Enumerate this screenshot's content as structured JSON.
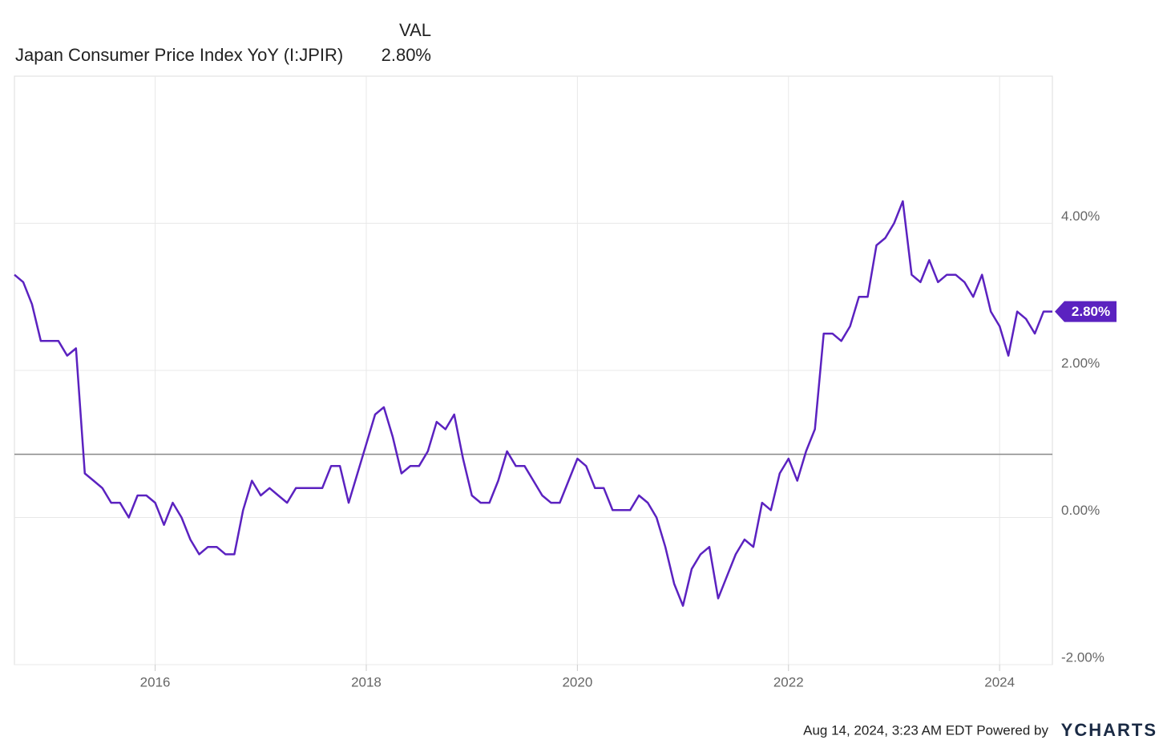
{
  "chart_data": {
    "type": "line",
    "legend": {
      "header": "VAL",
      "name": "Japan Consumer Price Index YoY (I:JPIR)",
      "value": "2.80%"
    },
    "x": [
      "2014-09",
      "2014-10",
      "2014-11",
      "2014-12",
      "2015-01",
      "2015-02",
      "2015-03",
      "2015-04",
      "2015-05",
      "2015-06",
      "2015-07",
      "2015-08",
      "2015-09",
      "2015-10",
      "2015-11",
      "2015-12",
      "2016-01",
      "2016-02",
      "2016-03",
      "2016-04",
      "2016-05",
      "2016-06",
      "2016-07",
      "2016-08",
      "2016-09",
      "2016-10",
      "2016-11",
      "2016-12",
      "2017-01",
      "2017-02",
      "2017-03",
      "2017-04",
      "2017-05",
      "2017-06",
      "2017-07",
      "2017-08",
      "2017-09",
      "2017-10",
      "2017-11",
      "2017-12",
      "2018-01",
      "2018-02",
      "2018-03",
      "2018-04",
      "2018-05",
      "2018-06",
      "2018-07",
      "2018-08",
      "2018-09",
      "2018-10",
      "2018-11",
      "2018-12",
      "2019-01",
      "2019-02",
      "2019-03",
      "2019-04",
      "2019-05",
      "2019-06",
      "2019-07",
      "2019-08",
      "2019-09",
      "2019-10",
      "2019-11",
      "2019-12",
      "2020-01",
      "2020-02",
      "2020-03",
      "2020-04",
      "2020-05",
      "2020-06",
      "2020-07",
      "2020-08",
      "2020-09",
      "2020-10",
      "2020-11",
      "2020-12",
      "2021-01",
      "2021-02",
      "2021-03",
      "2021-04",
      "2021-05",
      "2021-06",
      "2021-07",
      "2021-08",
      "2021-09",
      "2021-10",
      "2021-11",
      "2021-12",
      "2022-01",
      "2022-02",
      "2022-03",
      "2022-04",
      "2022-05",
      "2022-06",
      "2022-07",
      "2022-08",
      "2022-09",
      "2022-10",
      "2022-11",
      "2022-12",
      "2023-01",
      "2023-02",
      "2023-03",
      "2023-04",
      "2023-05",
      "2023-06",
      "2023-07",
      "2023-08",
      "2023-09",
      "2023-10",
      "2023-11",
      "2023-12",
      "2024-01",
      "2024-02",
      "2024-03",
      "2024-04",
      "2024-05",
      "2024-06",
      "2024-07"
    ],
    "series": [
      {
        "name": "Japan Consumer Price Index YoY (I:JPIR)",
        "color": "#5b22c0",
        "last_label": "2.80%",
        "values": [
          3.3,
          3.2,
          2.9,
          2.4,
          2.4,
          2.4,
          2.2,
          2.3,
          0.6,
          0.5,
          0.4,
          0.2,
          0.2,
          0.0,
          0.3,
          0.3,
          0.2,
          -0.1,
          0.2,
          0.0,
          -0.3,
          -0.5,
          -0.4,
          -0.4,
          -0.5,
          -0.5,
          0.1,
          0.5,
          0.3,
          0.4,
          0.3,
          0.2,
          0.4,
          0.4,
          0.4,
          0.4,
          0.7,
          0.7,
          0.2,
          0.6,
          1.0,
          1.4,
          1.5,
          1.1,
          0.6,
          0.7,
          0.7,
          0.9,
          1.3,
          1.2,
          1.4,
          0.8,
          0.3,
          0.2,
          0.2,
          0.5,
          0.9,
          0.7,
          0.7,
          0.5,
          0.3,
          0.2,
          0.2,
          0.5,
          0.8,
          0.7,
          0.4,
          0.4,
          0.1,
          0.1,
          0.1,
          0.3,
          0.2,
          0.0,
          -0.4,
          -0.9,
          -1.2,
          -0.7,
          -0.5,
          -0.4,
          -1.1,
          -0.8,
          -0.5,
          -0.3,
          -0.4,
          0.2,
          0.1,
          0.6,
          0.8,
          0.5,
          0.9,
          1.2,
          2.5,
          2.5,
          2.4,
          2.6,
          3.0,
          3.0,
          3.7,
          3.8,
          4.0,
          4.3,
          3.3,
          3.2,
          3.5,
          3.2,
          3.3,
          3.3,
          3.2,
          3.0,
          3.3,
          2.8,
          2.6,
          2.2,
          2.8,
          2.7,
          2.5,
          2.8,
          2.8
        ]
      }
    ],
    "reference_line": 0.86,
    "xlim": [
      "2014-09",
      "2024-07"
    ],
    "xticks": [
      2016,
      2018,
      2020,
      2022,
      2024
    ],
    "ylim": [
      -2,
      6
    ],
    "yticks": [
      {
        "value": -2,
        "label": "-2.00%"
      },
      {
        "value": 0,
        "label": "0.00%"
      },
      {
        "value": 2,
        "label": "2.00%"
      },
      {
        "value": 4,
        "label": "4.00%"
      }
    ],
    "grid": true,
    "footer": {
      "timestamp": "Aug 14, 2024, 3:23 AM EDT Powered by",
      "brand": "YCHARTS"
    }
  }
}
